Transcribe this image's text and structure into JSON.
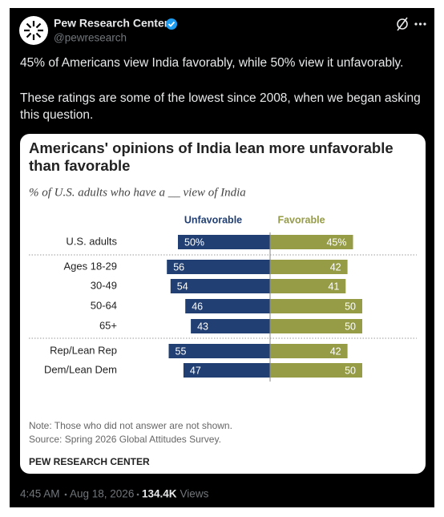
{
  "tweet": {
    "name": "Pew Research Center",
    "handle": "@pewresearch",
    "paragraphs": [
      "45% of Americans view India favorably, while 50% view it unfavorably.",
      "These ratings are some of the lowest since 2008, when we began asking this question."
    ],
    "time": "4:45 AM",
    "date": "Aug 18, 2026",
    "views": "134.4K",
    "views_label": "Views"
  },
  "chart_data": {
    "type": "diverging-bar",
    "title": "Americans' opinions of India lean more unfavorable than favorable",
    "subtitle": "% of U.S. adults who have a __ view of India",
    "categories": [
      "U.S. adults",
      "Ages 18-29",
      "30-49",
      "50-64",
      "65+",
      "Rep/Lean Rep",
      "Dem/Lean Dem"
    ],
    "series": [
      {
        "name": "Unfavorable",
        "color": "#213f73",
        "values": [
          50,
          56,
          54,
          46,
          43,
          55,
          47
        ],
        "value_labels": [
          "50%",
          "56",
          "54",
          "46",
          "43",
          "55",
          "47"
        ]
      },
      {
        "name": "Favorable",
        "color": "#959c45",
        "values": [
          45,
          42,
          41,
          50,
          50,
          42,
          50
        ],
        "value_labels": [
          "45%",
          "42",
          "41",
          "50",
          "50",
          "42",
          "50"
        ]
      }
    ],
    "note": "Note: Those who did not answer are not shown.",
    "source": "Source: Spring 2026 Global Attitudes Survey.",
    "credit": "PEW RESEARCH CENTER"
  }
}
